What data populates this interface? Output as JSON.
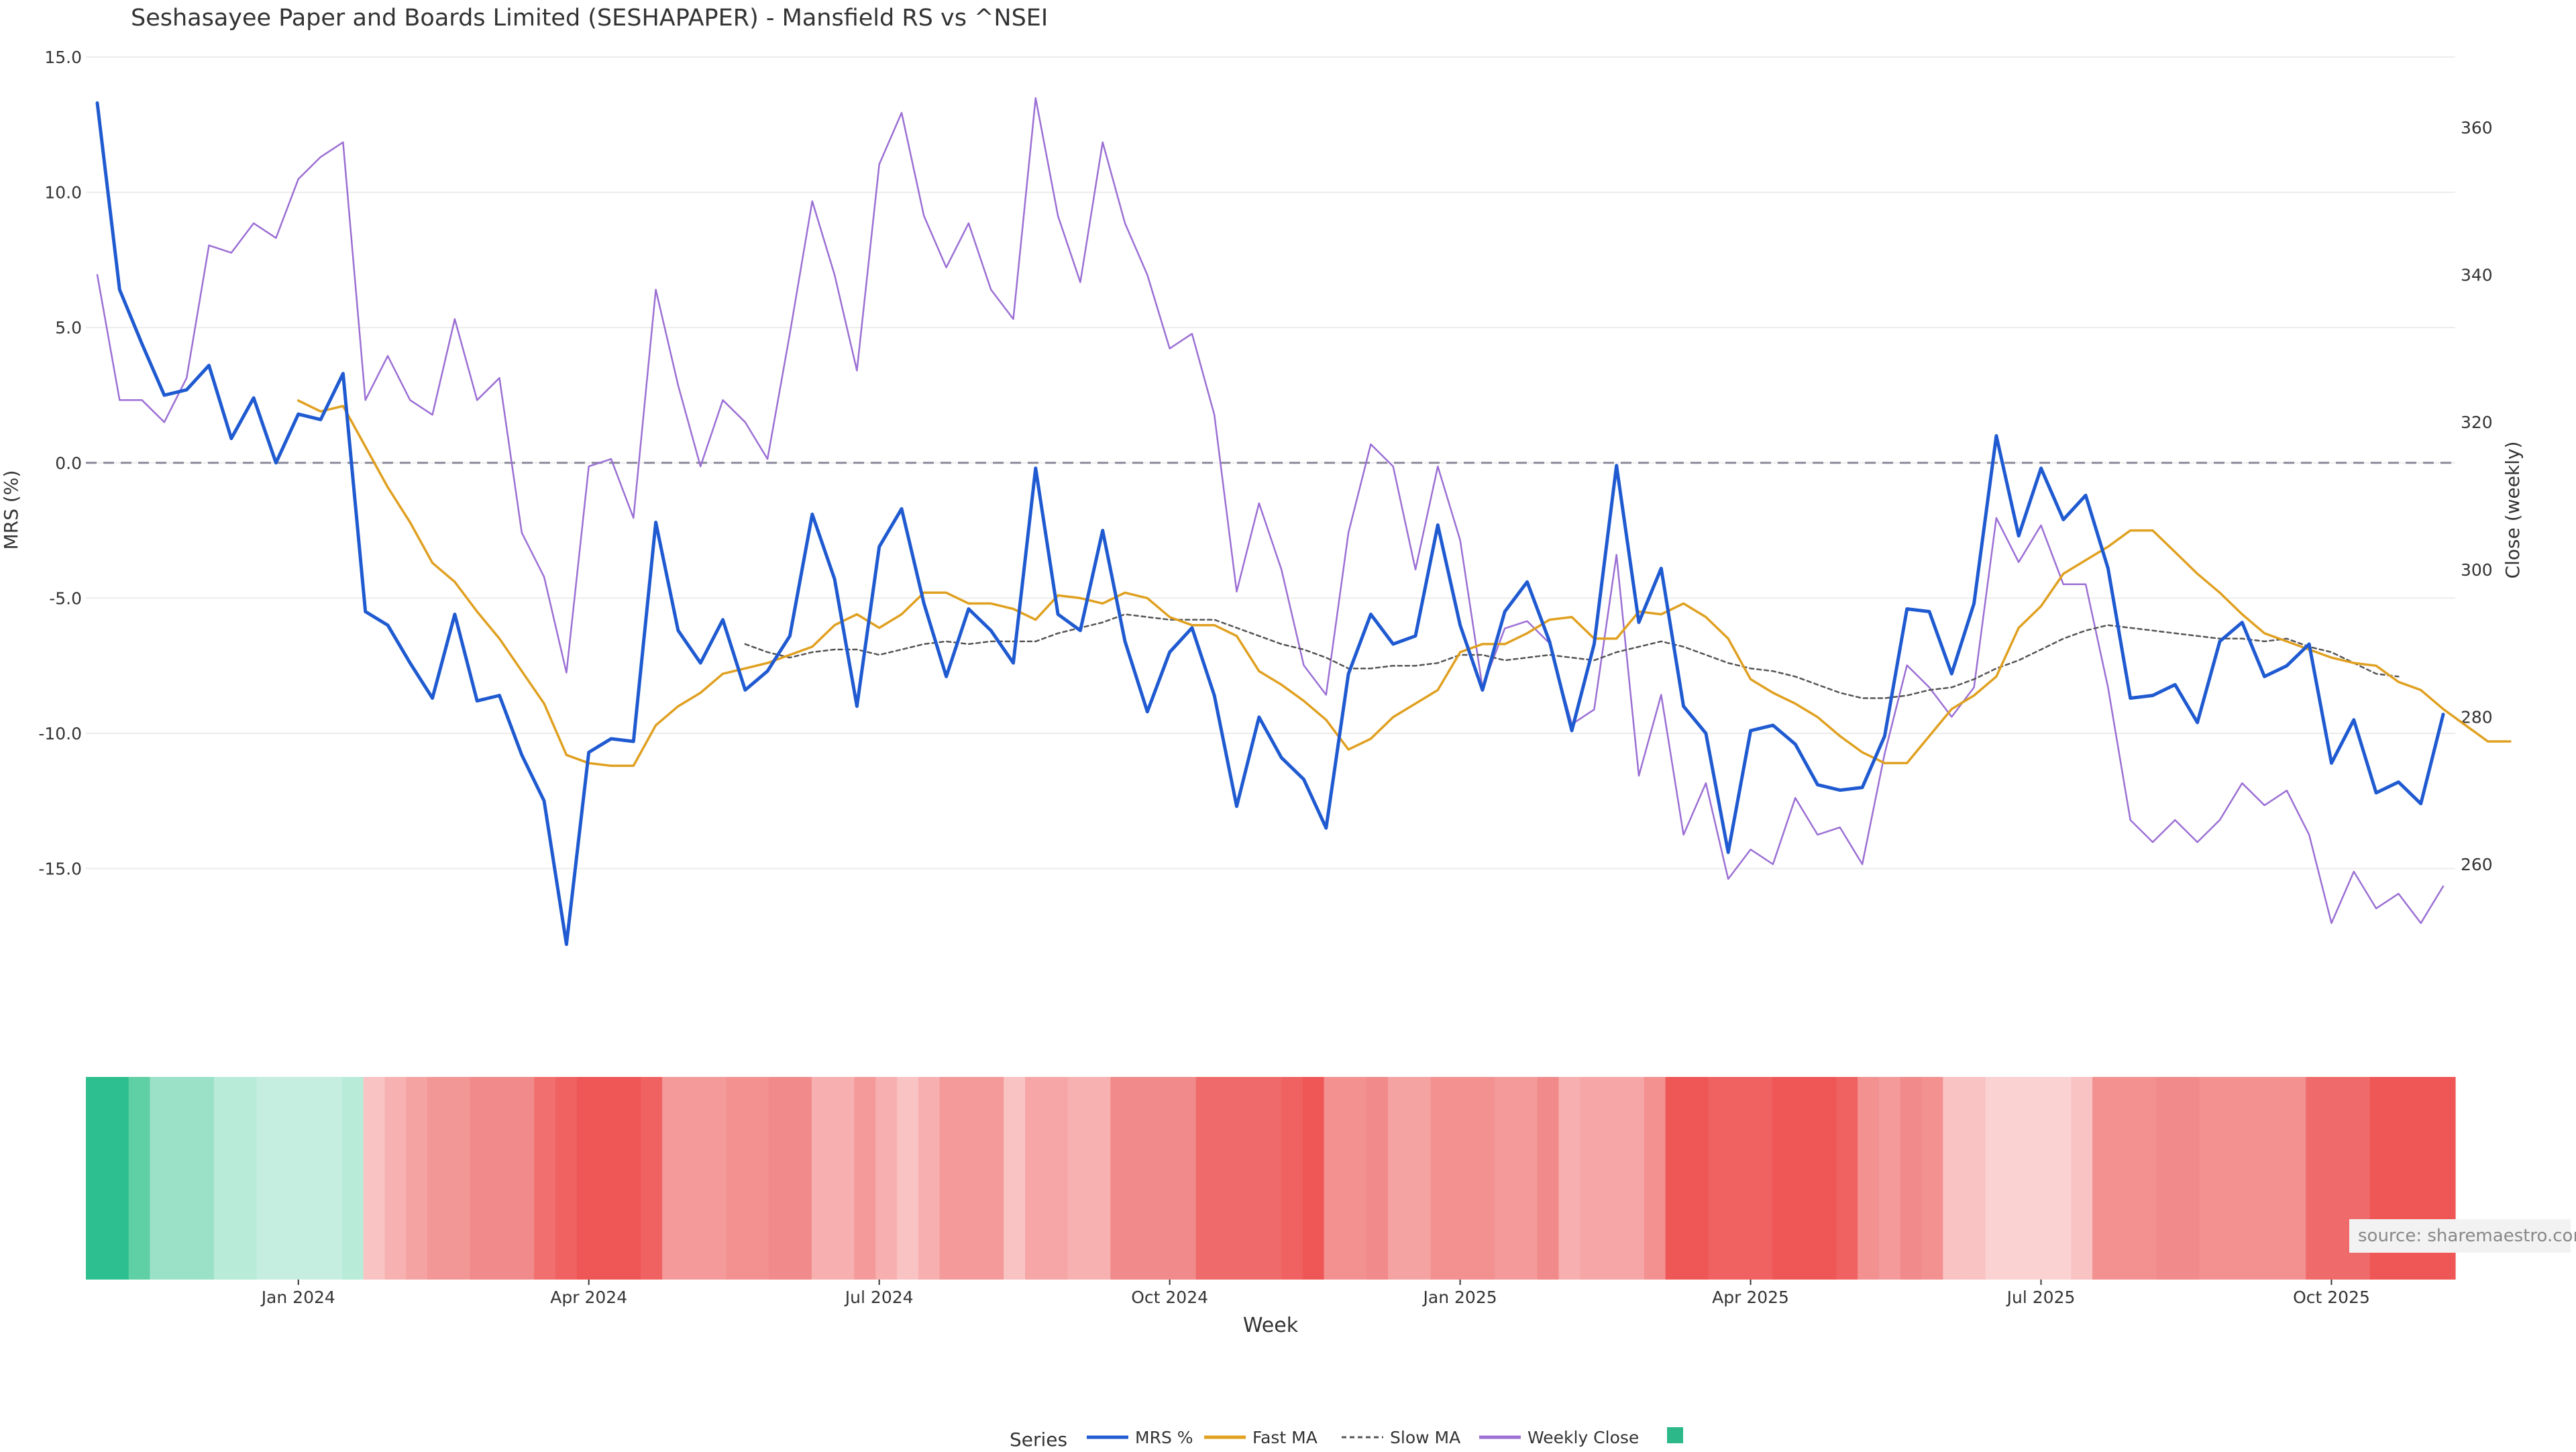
{
  "chart_data": {
    "type": "line",
    "title": "Seshasayee Paper and Boards Limited (SESHAPAPER) - Mansfield RS vs ^NSEI",
    "xlabel": "Week",
    "ylabel_left": "MRS (%)",
    "ylabel_right": "Close (weekly)",
    "ylim_left": [
      -19.6,
      15.0
    ],
    "ylim_right": [
      245,
      370
    ],
    "yticks_left": [
      "15.0",
      "10.0",
      "5.0",
      "0.0",
      "-5.0",
      "-10.0",
      "-15.0"
    ],
    "ytick_values_left": [
      15,
      10,
      5,
      0,
      -5,
      -10,
      -15
    ],
    "yticks_right": [
      "360",
      "340",
      "320",
      "300",
      "280",
      "260"
    ],
    "ytick_values_right": [
      360,
      340,
      320,
      300,
      280,
      260
    ],
    "x_tick_labels": [
      "Jan 2024",
      "Apr 2024",
      "Jul 2024",
      "Oct 2024",
      "Jan 2025",
      "Apr 2025",
      "Jul 2025",
      "Oct 2025"
    ],
    "x_tick_weeks": [
      9,
      22,
      35,
      48,
      61,
      74,
      87,
      100
    ],
    "grid": true,
    "legend_placement": "bottom-center",
    "legend_title": "Series",
    "source_note": "source: sharemaestro.com",
    "zero_line": 0,
    "series": [
      {
        "name": "MRS %",
        "color": "#1f5ad1",
        "axis": "left",
        "dash": "none",
        "start_index": 0,
        "values": [
          13.3,
          6.4,
          4.4,
          2.5,
          2.7,
          3.6,
          0.9,
          2.4,
          0.0,
          1.8,
          1.6,
          3.3,
          -5.5,
          -6.0,
          -7.4,
          -8.7,
          -5.6,
          -8.8,
          -8.6,
          -10.8,
          -12.5,
          -17.8,
          -10.7,
          -10.2,
          -10.3,
          -2.2,
          -6.2,
          -7.4,
          -5.8,
          -8.4,
          -7.7,
          -6.4,
          -1.9,
          -4.3,
          -9.0,
          -3.1,
          -1.7,
          -5.2,
          -7.9,
          -5.4,
          -6.2,
          -7.4,
          -0.2,
          -5.6,
          -6.2,
          -2.5,
          -6.6,
          -9.2,
          -7.0,
          -6.1,
          -8.6,
          -12.7,
          -9.4,
          -10.9,
          -11.7,
          -13.5,
          -7.8,
          -5.6,
          -6.7,
          -6.4,
          -2.3,
          -6.0,
          -8.4,
          -5.5,
          -4.4,
          -6.6,
          -9.9,
          -6.7,
          -0.1,
          -5.9,
          -3.9,
          -9.0,
          -10.0,
          -14.4,
          -9.9,
          -9.7,
          -10.4,
          -11.9,
          -12.1,
          -12.0,
          -10.1,
          -5.4,
          -5.5,
          -7.8,
          -5.2,
          1.0,
          -2.7,
          -0.2,
          -2.1,
          -1.2,
          -3.9,
          -8.7,
          -8.6,
          -8.2,
          -9.6,
          -6.6,
          -5.9,
          -7.9,
          -7.5,
          -6.7,
          -11.1,
          -9.5,
          -12.2,
          -11.8,
          -12.6,
          -9.3
        ]
      },
      {
        "name": "Fast MA",
        "color": "#e0a020",
        "axis": "left",
        "dash": "none",
        "start_index": 9,
        "values": [
          2.3,
          1.9,
          2.1,
          0.6,
          -0.9,
          -2.2,
          -3.7,
          -4.4,
          -5.5,
          -6.5,
          -7.7,
          -8.9,
          -10.8,
          -11.1,
          -11.2,
          -11.2,
          -9.7,
          -9.0,
          -8.5,
          -7.8,
          -7.6,
          -7.4,
          -7.1,
          -6.8,
          -6.0,
          -5.6,
          -6.1,
          -5.6,
          -4.8,
          -4.8,
          -5.2,
          -5.2,
          -5.4,
          -5.8,
          -4.9,
          -5.0,
          -5.2,
          -4.8,
          -5.0,
          -5.7,
          -6.0,
          -6.0,
          -6.4,
          -7.7,
          -8.2,
          -8.8,
          -9.5,
          -10.6,
          -10.2,
          -9.4,
          -8.9,
          -8.4,
          -7.0,
          -6.7,
          -6.7,
          -6.3,
          -5.8,
          -5.7,
          -6.5,
          -6.5,
          -5.5,
          -5.6,
          -5.2,
          -5.7,
          -6.5,
          -8.0,
          -8.5,
          -8.9,
          -9.4,
          -10.1,
          -10.7,
          -11.1,
          -11.1,
          -10.1,
          -9.1,
          -8.6,
          -7.9,
          -6.1,
          -5.3,
          -4.1,
          -3.6,
          -3.1,
          -2.5,
          -2.5,
          -3.3,
          -4.1,
          -4.8,
          -5.6,
          -6.3,
          -6.6,
          -6.9,
          -7.2,
          -7.4,
          -7.5,
          -8.1,
          -8.4,
          -9.1,
          -9.7,
          -10.3,
          -10.3
        ]
      },
      {
        "name": "Slow MA",
        "color": "#555555",
        "axis": "left",
        "dash": "6 5",
        "start_index": 29,
        "values": [
          -6.7,
          -7.0,
          -7.2,
          -7.0,
          -6.9,
          -6.9,
          -7.1,
          -6.9,
          -6.7,
          -6.6,
          -6.7,
          -6.6,
          -6.6,
          -6.6,
          -6.3,
          -6.1,
          -5.9,
          -5.6,
          -5.7,
          -5.8,
          -5.8,
          -5.8,
          -6.1,
          -6.4,
          -6.7,
          -6.9,
          -7.2,
          -7.6,
          -7.6,
          -7.5,
          -7.5,
          -7.4,
          -7.1,
          -7.1,
          -7.3,
          -7.2,
          -7.1,
          -7.2,
          -7.3,
          -7.0,
          -6.8,
          -6.6,
          -6.8,
          -7.1,
          -7.4,
          -7.6,
          -7.7,
          -7.9,
          -8.2,
          -8.5,
          -8.7,
          -8.7,
          -8.6,
          -8.4,
          -8.3,
          -8.0,
          -7.6,
          -7.3,
          -6.9,
          -6.5,
          -6.2,
          -6.0,
          -6.1,
          -6.2,
          -6.3,
          -6.4,
          -6.5,
          -6.5,
          -6.6,
          -6.5,
          -6.8,
          -7.0,
          -7.4,
          -7.8,
          -7.9
        ]
      },
      {
        "name": "Weekly Close",
        "color": "#9b6fd4",
        "axis": "right",
        "dash": "none",
        "start_index": 0,
        "values": [
          340,
          323,
          323,
          320,
          326,
          344,
          343,
          347,
          345,
          353,
          356,
          358,
          323,
          329,
          323,
          321,
          334,
          323,
          326,
          305,
          299,
          286,
          314,
          315,
          307,
          338,
          325,
          314,
          323,
          320,
          315,
          332,
          350,
          340,
          327,
          355,
          362,
          348,
          341,
          347,
          338,
          334,
          364,
          348,
          339,
          358,
          347,
          340,
          330,
          332,
          321,
          297,
          309,
          300,
          287,
          283,
          305,
          317,
          314,
          300,
          314,
          304,
          284,
          292,
          293,
          290,
          279,
          281,
          302,
          272,
          283,
          264,
          271,
          258,
          262,
          260,
          269,
          264,
          265,
          260,
          275,
          287,
          284,
          280,
          284,
          307,
          301,
          306,
          298,
          298,
          284,
          266,
          263,
          266,
          263,
          266,
          271,
          268,
          270,
          264,
          252,
          259,
          254,
          256,
          252,
          257
        ]
      }
    ],
    "legend_entries": [
      {
        "label": "MRS %",
        "color": "#1f5ad1",
        "style": "solid"
      },
      {
        "label": "Fast MA",
        "color": "#e0a020",
        "style": "solid"
      },
      {
        "label": "Slow MA",
        "color": "#555555",
        "style": "dashed"
      },
      {
        "label": "Weekly Close",
        "color": "#9b6fd4",
        "style": "solid"
      },
      {
        "label": "",
        "color": "#2db88a",
        "style": "swatch"
      }
    ],
    "heatmap": {
      "colors": [
        "#2dbf8f",
        "#2dbf8f",
        "#5fcfa5",
        "#9be1c8",
        "#9be1c8",
        "#9be1c8",
        "#b9ebd9",
        "#b9ebd9",
        "#c6eee0",
        "#c6eee0",
        "#c6eee0",
        "#c6eee0",
        "#b9ebd9",
        "#f9c3c3",
        "#f7b1b1",
        "#f5a2a2",
        "#f39696",
        "#f39696",
        "#f18a8a",
        "#f18a8a",
        "#f18a8a",
        "#f26f6f",
        "#f06262",
        "#ef5656",
        "#ef5656",
        "#ef5656",
        "#f06262",
        "#f49a9a",
        "#f49a9a",
        "#f49a9a",
        "#f39090",
        "#f39090",
        "#f18a8a",
        "#f18a8a",
        "#f7afaf",
        "#f7afaf",
        "#f49a9a",
        "#f7afaf",
        "#f9c3c3",
        "#f7afaf",
        "#f49a9a",
        "#f49a9a",
        "#f49a9a",
        "#f9c3c3",
        "#f6a6a6",
        "#f6a6a6",
        "#f7b1b1",
        "#f7b1b1",
        "#f18a8a",
        "#f18a8a",
        "#f18a8a",
        "#f18a8a",
        "#ef6b6b",
        "#ef6b6b",
        "#ef6b6b",
        "#ef6b6b",
        "#f06262",
        "#ef5656",
        "#f39090",
        "#f39090",
        "#f18a8a",
        "#f5a2a2",
        "#f5a2a2",
        "#f39090",
        "#f39090",
        "#f39090",
        "#f49a9a",
        "#f49a9a",
        "#f18a8a",
        "#f7afaf",
        "#f6a6a6",
        "#f6a6a6",
        "#f6a6a6",
        "#f39090",
        "#ef5656",
        "#ef5656",
        "#f06262",
        "#f06262",
        "#f06262",
        "#ef5656",
        "#ef5656",
        "#ef5656",
        "#f06262",
        "#f39090",
        "#f49a9a",
        "#f18a8a",
        "#f39090",
        "#f9c3c3",
        "#f9c3c3",
        "#fbd2d2",
        "#fbd2d2",
        "#fbd2d2",
        "#fbd2d2",
        "#f9c3c3",
        "#f39090",
        "#f39090",
        "#f39090",
        "#f18a8a",
        "#f18a8a",
        "#f39090",
        "#f39090",
        "#f39090",
        "#f39090",
        "#f39090",
        "#ef6b6b",
        "#ef6b6b",
        "#ef6b6b",
        "#ef5656",
        "#ef5656",
        "#ef5656",
        "#ef5656"
      ]
    }
  }
}
